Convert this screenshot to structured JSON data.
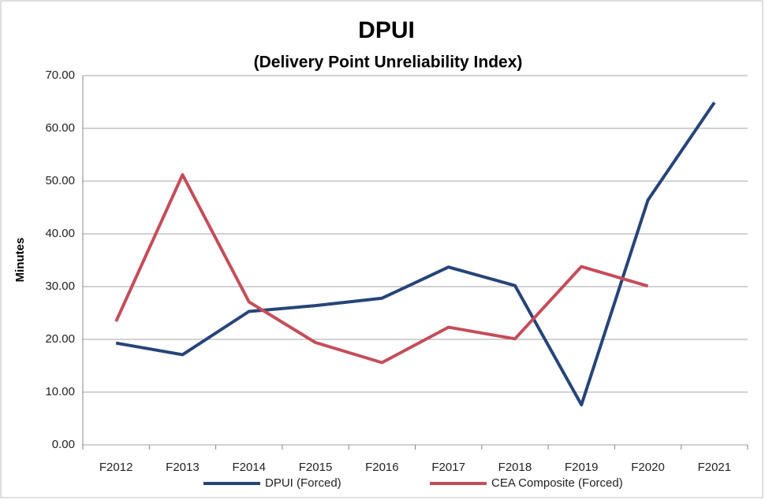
{
  "chart_data": {
    "type": "line",
    "title": "DPUI",
    "subtitle": "(Delivery Point Unreliability Index)",
    "y_label": "Minutes",
    "categories": [
      "F2012",
      "F2013",
      "F2014",
      "F2015",
      "F2016",
      "F2017",
      "F2018",
      "F2019",
      "F2020",
      "F2021"
    ],
    "series": [
      {
        "name": "DPUI (Forced)",
        "color": "#264478",
        "values": [
          19.3,
          17.1,
          25.3,
          26.4,
          27.8,
          33.7,
          30.2,
          7.6,
          46.4,
          64.9
        ]
      },
      {
        "name": "CEA Composite (Forced)",
        "color": "#c44d5a",
        "values": [
          23.4,
          51.2,
          27.1,
          19.4,
          15.6,
          22.3,
          20.1,
          33.8,
          30.1,
          null
        ]
      }
    ],
    "ylim": [
      0,
      70
    ],
    "yticks": [
      {
        "value": 0,
        "label": "0.00"
      },
      {
        "value": 10,
        "label": "10.00"
      },
      {
        "value": 20,
        "label": "20.00"
      },
      {
        "value": 30,
        "label": "30.00"
      },
      {
        "value": 40,
        "label": "40.00"
      },
      {
        "value": 50,
        "label": "50.00"
      },
      {
        "value": 60,
        "label": "60.00"
      },
      {
        "value": 70,
        "label": "70.00"
      }
    ],
    "grid": true,
    "legend": "bottom"
  }
}
